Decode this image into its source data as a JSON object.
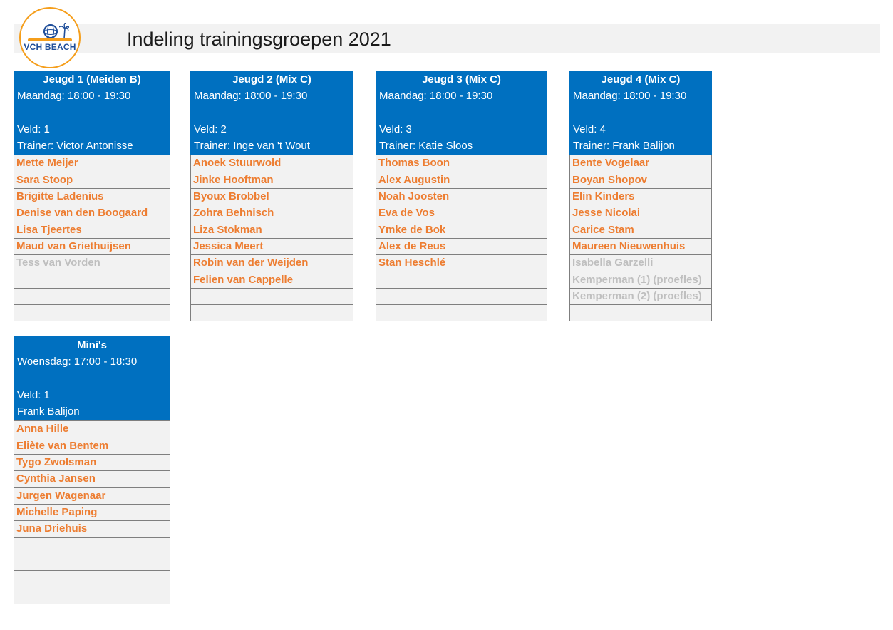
{
  "page": {
    "title": "Indeling trainingsgroepen 2021",
    "logo_text": "VCH BEACH"
  },
  "groups": [
    {
      "title": "Jeugd 1 (Meiden B)",
      "schedule": "Maandag: 18:00 - 19:30",
      "field": "Veld: 1",
      "trainer": "Trainer: Victor Antonisse",
      "members": [
        {
          "name": "Mette Meijer",
          "status": "active"
        },
        {
          "name": "Sara Stoop",
          "status": "active"
        },
        {
          "name": "Brigitte Ladenius",
          "status": "active"
        },
        {
          "name": "Denise van den Boogaard",
          "status": "active"
        },
        {
          "name": "Lisa Tjeertes",
          "status": "active"
        },
        {
          "name": "Maud van Griethuijsen",
          "status": "active"
        },
        {
          "name": "Tess van Vorden",
          "status": "inactive"
        },
        {
          "name": "",
          "status": "empty"
        },
        {
          "name": "",
          "status": "empty"
        },
        {
          "name": "",
          "status": "empty"
        }
      ]
    },
    {
      "title": "Jeugd 2 (Mix C)",
      "schedule": "Maandag: 18:00 - 19:30",
      "field": "Veld: 2",
      "trainer": "Trainer: Inge van 't Wout",
      "members": [
        {
          "name": "Anoek Stuurwold",
          "status": "active"
        },
        {
          "name": "Jinke Hooftman",
          "status": "active"
        },
        {
          "name": "Byoux Brobbel",
          "status": "active"
        },
        {
          "name": "Zohra Behnisch",
          "status": "active"
        },
        {
          "name": "Liza Stokman",
          "status": "active"
        },
        {
          "name": "Jessica Meert",
          "status": "active"
        },
        {
          "name": "Robin van der Weijden",
          "status": "active"
        },
        {
          "name": "Felien van Cappelle",
          "status": "active"
        },
        {
          "name": "",
          "status": "empty"
        },
        {
          "name": "",
          "status": "empty"
        }
      ]
    },
    {
      "title": "Jeugd 3 (Mix C)",
      "schedule": "Maandag: 18:00 - 19:30",
      "field": "Veld: 3",
      "trainer": "Trainer: Katie Sloos",
      "members": [
        {
          "name": "Thomas Boon",
          "status": "active"
        },
        {
          "name": "Alex Augustin",
          "status": "active"
        },
        {
          "name": "Noah Joosten",
          "status": "active"
        },
        {
          "name": "Eva de Vos",
          "status": "active"
        },
        {
          "name": "Ymke de Bok",
          "status": "active"
        },
        {
          "name": "Alex de Reus",
          "status": "active"
        },
        {
          "name": "Stan Heschlé",
          "status": "active"
        },
        {
          "name": "",
          "status": "empty"
        },
        {
          "name": "",
          "status": "empty"
        },
        {
          "name": "",
          "status": "empty"
        }
      ]
    },
    {
      "title": "Jeugd 4 (Mix C)",
      "schedule": "Maandag: 18:00 - 19:30",
      "field": "Veld: 4",
      "trainer": "Trainer: Frank Balijon",
      "members": [
        {
          "name": "Bente Vogelaar",
          "status": "active"
        },
        {
          "name": "Boyan Shopov",
          "status": "active"
        },
        {
          "name": "Elin Kinders",
          "status": "active"
        },
        {
          "name": "Jesse Nicolai",
          "status": "active"
        },
        {
          "name": "Carice Stam",
          "status": "active"
        },
        {
          "name": "Maureen Nieuwenhuis",
          "status": "active"
        },
        {
          "name": "Isabella Garzelli",
          "status": "inactive"
        },
        {
          "name": "Kemperman (1) (proefles)",
          "status": "inactive"
        },
        {
          "name": "Kemperman (2) (proefles)",
          "status": "inactive"
        },
        {
          "name": "",
          "status": "empty"
        }
      ]
    },
    {
      "title": "Mini's",
      "schedule": "Woensdag: 17:00 - 18:30",
      "field": "Veld: 1",
      "trainer": "Frank Balijon",
      "members": [
        {
          "name": "Anna Hille",
          "status": "active"
        },
        {
          "name": "Eliète van Bentem",
          "status": "active"
        },
        {
          "name": "Tygo Zwolsman",
          "status": "active"
        },
        {
          "name": "Cynthia Jansen",
          "status": "active"
        },
        {
          "name": "Jurgen Wagenaar",
          "status": "active"
        },
        {
          "name": "Michelle Paping",
          "status": "active"
        },
        {
          "name": "Juna Driehuis",
          "status": "active"
        },
        {
          "name": "",
          "status": "empty"
        },
        {
          "name": "",
          "status": "empty"
        },
        {
          "name": "",
          "status": "empty"
        },
        {
          "name": "",
          "status": "empty"
        }
      ]
    }
  ],
  "colors": {
    "header_bg": "#0070c0",
    "member_active": "#ed7d31",
    "member_inactive": "#bfbfbf",
    "row_bg": "#f2f2f2"
  }
}
